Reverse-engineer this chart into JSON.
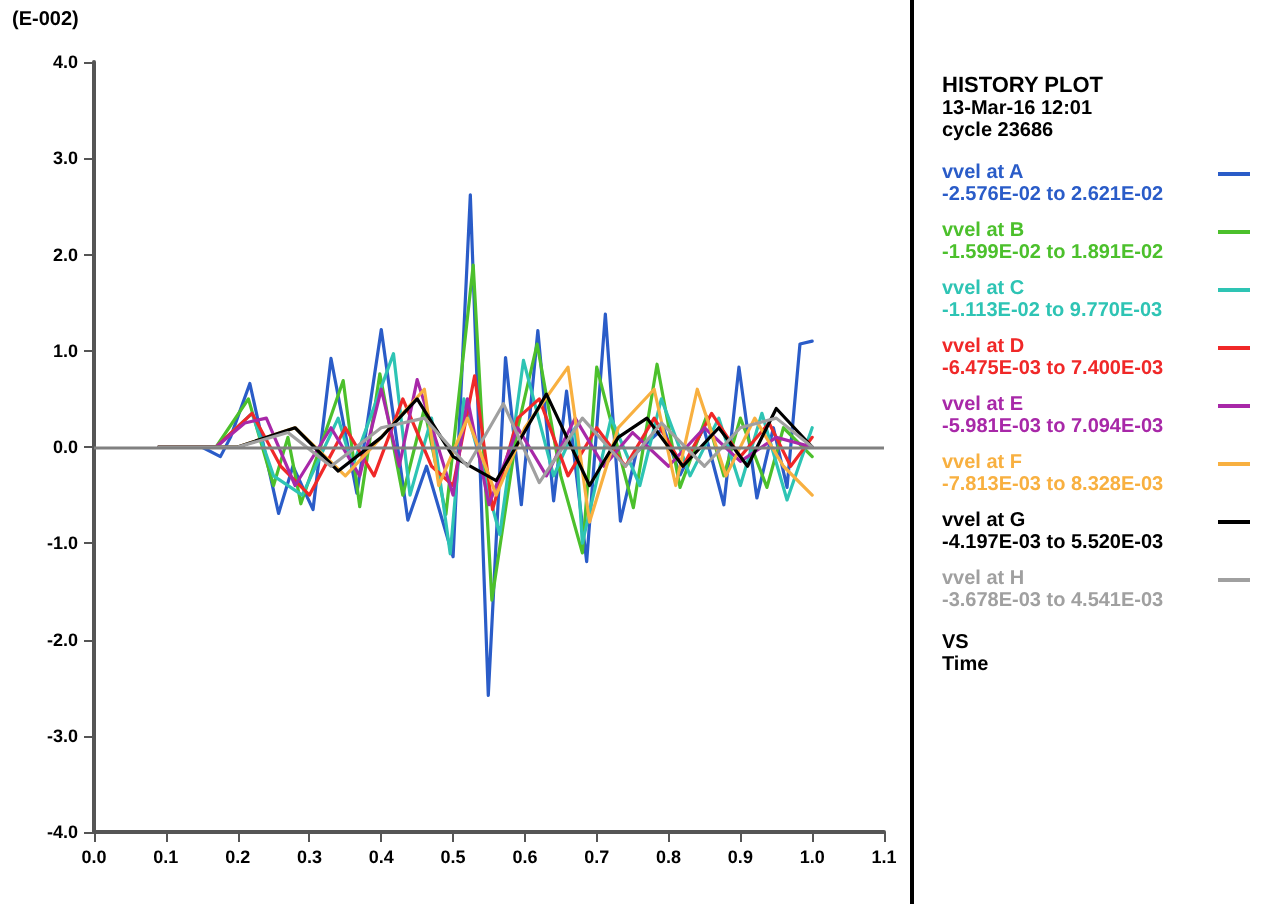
{
  "chart_data": {
    "type": "line",
    "title": "HISTORY PLOT",
    "ylabel": "(E-002)",
    "xlabel": "Time",
    "annotations": [
      "13-Mar-16  12:01",
      "cycle     23686",
      "-2.576E-02 to  2.621E-02",
      "-1.599E-02 to  1.891E-02",
      "-1.113E-02 to  9.770E-03",
      "-6.475E-03 to  7.400E-03",
      "-5.981E-03 to  7.094E-03",
      "-7.813E-03 to  8.328E-03",
      "-4.197E-03 to  5.520E-03",
      "-3.678E-03 to  4.541E-03",
      "VS"
    ],
    "xlim": [
      0,
      1.1
    ],
    "xticks": [
      {
        "value": 0,
        "label": "0.0"
      },
      0.1,
      0.2,
      0.3,
      0.4,
      0.5,
      0.6,
      0.7,
      0.8,
      0.9,
      {
        "value": 1,
        "label": "1.0"
      },
      1.1
    ],
    "ylim": [
      -4,
      4
    ],
    "yticks": [
      {
        "value": -4,
        "label": "-4.0"
      },
      {
        "value": -3,
        "label": "-3.0"
      },
      {
        "value": -2,
        "label": "-2.0"
      },
      {
        "value": -1,
        "label": "-1.0"
      },
      {
        "value": 0,
        "label": "0.0"
      },
      {
        "value": 1,
        "label": "1.0"
      },
      {
        "value": 2,
        "label": "2.0"
      },
      {
        "value": 3,
        "label": "3.0"
      },
      {
        "value": 4,
        "label": "4.0"
      }
    ],
    "grid": false,
    "legend": "right",
    "marker": "none",
    "line_style": "solid",
    "ref_lines": [
      {
        "axis": "y",
        "value": 0,
        "color": "#808080"
      }
    ],
    "series": [
      {
        "name": "vvel  at A",
        "color": "#2a5cc8",
        "x": [
          0.09,
          0.15,
          0.176,
          0.19,
          0.217,
          0.257,
          0.277,
          0.305,
          0.33,
          0.366,
          0.4,
          0.437,
          0.463,
          0.5,
          0.524,
          0.549,
          0.573,
          0.595,
          0.618,
          0.64,
          0.658,
          0.686,
          0.712,
          0.733,
          0.755,
          0.793,
          0.816,
          0.849,
          0.877,
          0.898,
          0.923,
          0.946,
          0.965,
          0.983,
          1.0
        ],
        "values": [
          0,
          0,
          -0.1,
          0.1,
          0.66,
          -0.69,
          -0.2,
          -0.65,
          0.92,
          -0.48,
          1.22,
          -0.76,
          -0.2,
          -1.14,
          2.62,
          -2.58,
          0.93,
          -0.6,
          1.21,
          -0.56,
          0.58,
          -1.19,
          1.38,
          -0.77,
          -0.06,
          0.2,
          -0.29,
          0.2,
          -0.6,
          0.83,
          -0.53,
          0.2,
          -0.42,
          1.07,
          1.1
        ]
      },
      {
        "name": "vvel at B",
        "color": "#4cc02c",
        "x": [
          0.09,
          0.17,
          0.215,
          0.25,
          0.27,
          0.288,
          0.347,
          0.37,
          0.398,
          0.43,
          0.46,
          0.49,
          0.528,
          0.554,
          0.59,
          0.617,
          0.65,
          0.68,
          0.7,
          0.751,
          0.784,
          0.816,
          0.853,
          0.877,
          0.9,
          0.937,
          0.96,
          1.0
        ],
        "values": [
          0,
          0,
          0.5,
          -0.4,
          0.1,
          -0.59,
          0.69,
          -0.62,
          0.76,
          -0.5,
          0.4,
          -0.7,
          1.89,
          -1.59,
          0.2,
          1.07,
          -0.3,
          -1.1,
          0.83,
          -0.63,
          0.86,
          -0.42,
          0.32,
          -0.3,
          0.3,
          -0.42,
          0.2,
          -0.1
        ]
      },
      {
        "name": "vvel at C",
        "color": "#2ec4b4",
        "x": [
          0.09,
          0.17,
          0.22,
          0.25,
          0.29,
          0.34,
          0.36,
          0.417,
          0.44,
          0.47,
          0.496,
          0.515,
          0.565,
          0.598,
          0.64,
          0.67,
          0.68,
          0.72,
          0.76,
          0.79,
          0.83,
          0.87,
          0.9,
          0.93,
          0.965,
          1.0
        ],
        "values": [
          0,
          0,
          0.35,
          -0.3,
          -0.5,
          0.3,
          -0.2,
          0.97,
          -0.5,
          0.3,
          -1.11,
          0.5,
          -0.91,
          0.9,
          -0.3,
          0.2,
          -1.0,
          0.3,
          -0.4,
          0.5,
          -0.3,
          0.3,
          -0.4,
          0.35,
          -0.55,
          0.2
        ]
      },
      {
        "name": "vvel at D",
        "color": "#f02828",
        "x": [
          0.09,
          0.17,
          0.22,
          0.26,
          0.3,
          0.35,
          0.39,
          0.43,
          0.47,
          0.5,
          0.53,
          0.555,
          0.59,
          0.62,
          0.66,
          0.7,
          0.74,
          0.78,
          0.82,
          0.86,
          0.9,
          0.94,
          0.97,
          1.0
        ],
        "values": [
          0,
          0,
          0.35,
          -0.2,
          -0.5,
          0.2,
          -0.3,
          0.5,
          -0.2,
          -0.4,
          0.74,
          -0.65,
          0.3,
          0.5,
          -0.3,
          0.2,
          -0.2,
          0.3,
          -0.2,
          0.35,
          -0.1,
          0.25,
          -0.2,
          0.1
        ]
      },
      {
        "name": "vvel at E",
        "color": "#a828a8",
        "x": [
          0.09,
          0.17,
          0.21,
          0.24,
          0.28,
          0.33,
          0.37,
          0.4,
          0.425,
          0.45,
          0.5,
          0.52,
          0.55,
          0.59,
          0.63,
          0.67,
          0.71,
          0.75,
          0.8,
          0.85,
          0.9,
          0.95,
          1.0
        ],
        "values": [
          0,
          0,
          0.25,
          0.3,
          -0.4,
          0.2,
          -0.3,
          0.6,
          -0.2,
          0.7,
          -0.5,
          0.5,
          -0.6,
          0.2,
          -0.3,
          0.3,
          -0.2,
          0.15,
          -0.2,
          0.2,
          -0.15,
          0.1,
          0
        ]
      },
      {
        "name": "vvel at F",
        "color": "#f8b040",
        "x": [
          0.09,
          0.2,
          0.28,
          0.35,
          0.4,
          0.46,
          0.48,
          0.52,
          0.56,
          0.6,
          0.66,
          0.69,
          0.73,
          0.78,
          0.81,
          0.84,
          0.88,
          0.92,
          0.96,
          1.0
        ],
        "values": [
          0,
          0,
          0.2,
          -0.3,
          0.1,
          0.6,
          -0.4,
          0.3,
          -0.5,
          0.2,
          0.83,
          -0.78,
          0.2,
          0.6,
          -0.4,
          0.6,
          -0.3,
          0.3,
          -0.2,
          -0.5
        ]
      },
      {
        "name": "vvel  at G",
        "color": "#000000",
        "x": [
          0.09,
          0.2,
          0.28,
          0.34,
          0.4,
          0.45,
          0.5,
          0.56,
          0.63,
          0.69,
          0.73,
          0.77,
          0.82,
          0.87,
          0.91,
          0.95,
          1.0
        ],
        "values": [
          0,
          0,
          0.2,
          -0.25,
          0.1,
          0.5,
          -0.1,
          -0.35,
          0.55,
          -0.4,
          0.1,
          0.3,
          -0.2,
          0.2,
          -0.2,
          0.4,
          0
        ]
      },
      {
        "name": "vvel  at H",
        "color": "#a0a0a0",
        "x": [
          0.09,
          0.2,
          0.27,
          0.33,
          0.4,
          0.46,
          0.52,
          0.57,
          0.62,
          0.68,
          0.74,
          0.79,
          0.85,
          0.9,
          0.95,
          1.0
        ],
        "values": [
          0,
          0,
          0.15,
          -0.2,
          0.2,
          0.3,
          -0.2,
          0.45,
          -0.37,
          0.3,
          -0.2,
          0.25,
          -0.2,
          0.2,
          0.3,
          0
        ]
      }
    ]
  }
}
